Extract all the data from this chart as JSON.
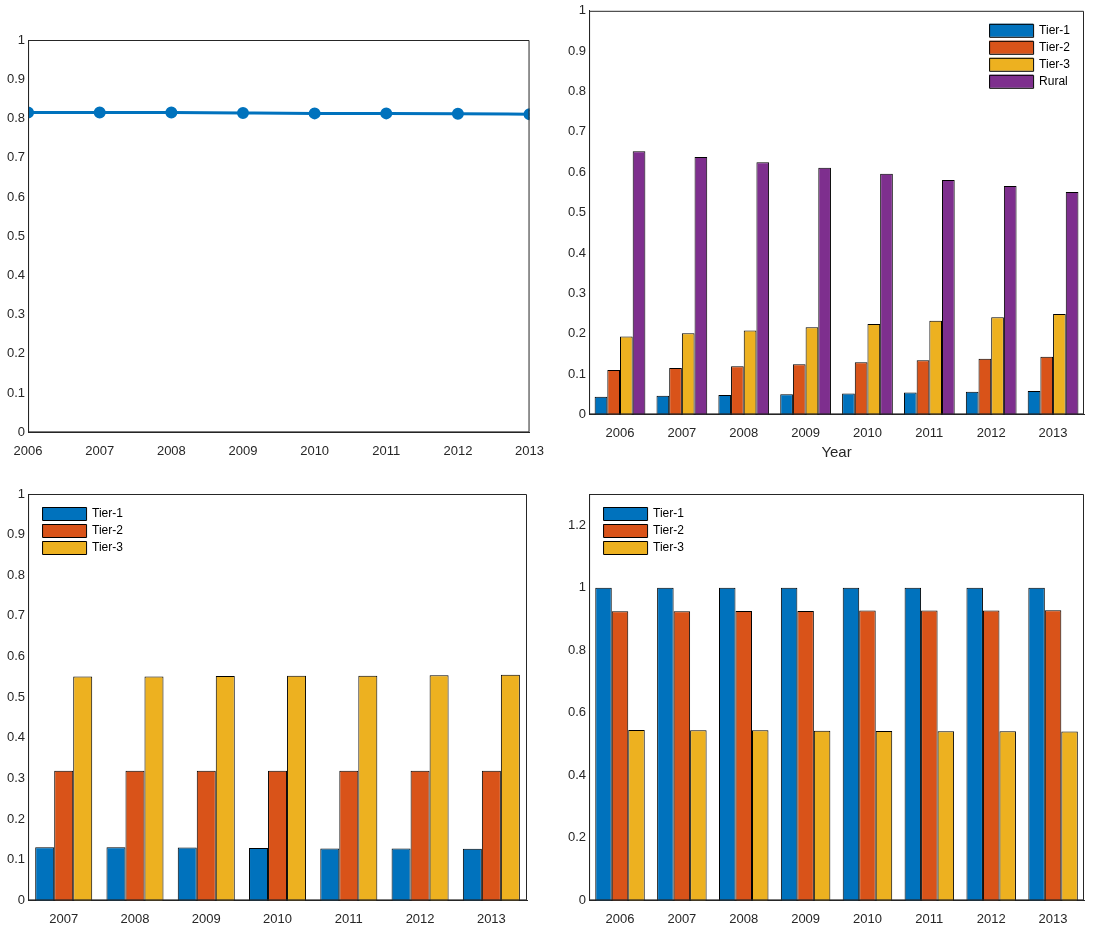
{
  "chart_data": [
    {
      "type": "line",
      "x": [
        2006,
        2007,
        2008,
        2009,
        2010,
        2011,
        2012,
        2013
      ],
      "xlim": [
        2006,
        2013
      ],
      "xticks": [
        2006,
        2007,
        2008,
        2009,
        2010,
        2011,
        2012,
        2013
      ],
      "ylim": [
        0,
        1
      ],
      "yticks": [
        0,
        0.1,
        0.2,
        0.3,
        0.4,
        0.5,
        0.6,
        0.7,
        0.8,
        0.9,
        1
      ],
      "grid": false,
      "legend": false,
      "marker": "circle",
      "line_style": "solid",
      "series": [
        {
          "color": "#0072bd",
          "values": [
            0.815,
            0.815,
            0.815,
            0.814,
            0.813,
            0.813,
            0.812,
            0.811
          ]
        }
      ]
    },
    {
      "type": "bar",
      "categories": [
        "2006",
        "2007",
        "2008",
        "2009",
        "2010",
        "2011",
        "2012",
        "2013"
      ],
      "xlabel": "Year",
      "ylim": [
        0,
        1
      ],
      "yticks": [
        0,
        0.1,
        0.2,
        0.3,
        0.4,
        0.5,
        0.6,
        0.7,
        0.8,
        0.9,
        1
      ],
      "grid": false,
      "legend": "top right",
      "series": [
        {
          "name": "Tier-1",
          "color": "#0072bd",
          "values": [
            0.044,
            0.046,
            0.048,
            0.05,
            0.052,
            0.054,
            0.056,
            0.058
          ]
        },
        {
          "name": "Tier-2",
          "color": "#d95319",
          "values": [
            0.11,
            0.115,
            0.119,
            0.124,
            0.129,
            0.134,
            0.138,
            0.143
          ]
        },
        {
          "name": "Tier-3",
          "color": "#edb120",
          "values": [
            0.193,
            0.201,
            0.208,
            0.216,
            0.224,
            0.232,
            0.241,
            0.249
          ]
        },
        {
          "name": "Rural",
          "color": "#7e2f8e",
          "values": [
            0.652,
            0.638,
            0.625,
            0.611,
            0.596,
            0.581,
            0.566,
            0.551
          ]
        }
      ]
    },
    {
      "type": "bar",
      "categories": [
        "2007",
        "2008",
        "2009",
        "2010",
        "2011",
        "2012",
        "2013"
      ],
      "ylim": [
        0,
        1
      ],
      "yticks": [
        0,
        0.1,
        0.2,
        0.3,
        0.4,
        0.5,
        0.6,
        0.7,
        0.8,
        0.9,
        1
      ],
      "grid": false,
      "legend": "top left",
      "series": [
        {
          "name": "Tier-1",
          "color": "#0072bd",
          "values": [
            0.131,
            0.131,
            0.13,
            0.129,
            0.128,
            0.128,
            0.127
          ]
        },
        {
          "name": "Tier-2",
          "color": "#d95319",
          "values": [
            0.319,
            0.319,
            0.319,
            0.319,
            0.319,
            0.319,
            0.319
          ]
        },
        {
          "name": "Tier-3",
          "color": "#edb120",
          "values": [
            0.551,
            0.551,
            0.552,
            0.553,
            0.553,
            0.554,
            0.555
          ]
        }
      ]
    },
    {
      "type": "bar",
      "categories": [
        "2006",
        "2007",
        "2008",
        "2009",
        "2010",
        "2011",
        "2012",
        "2013"
      ],
      "ylim": [
        0,
        1.3
      ],
      "yticks": [
        0,
        0.2,
        0.4,
        0.6,
        0.8,
        1,
        1.2
      ],
      "grid": false,
      "legend": "top left",
      "series": [
        {
          "name": "Tier-1",
          "color": "#0072bd",
          "values": [
            1,
            1,
            1,
            1,
            1,
            1,
            1,
            1
          ]
        },
        {
          "name": "Tier-2",
          "color": "#d95319",
          "values": [
            0.925,
            0.925,
            0.926,
            0.926,
            0.927,
            0.927,
            0.927,
            0.928
          ]
        },
        {
          "name": "Tier-3",
          "color": "#edb120",
          "values": [
            0.545,
            0.544,
            0.544,
            0.543,
            0.542,
            0.541,
            0.541,
            0.54
          ]
        }
      ]
    }
  ]
}
